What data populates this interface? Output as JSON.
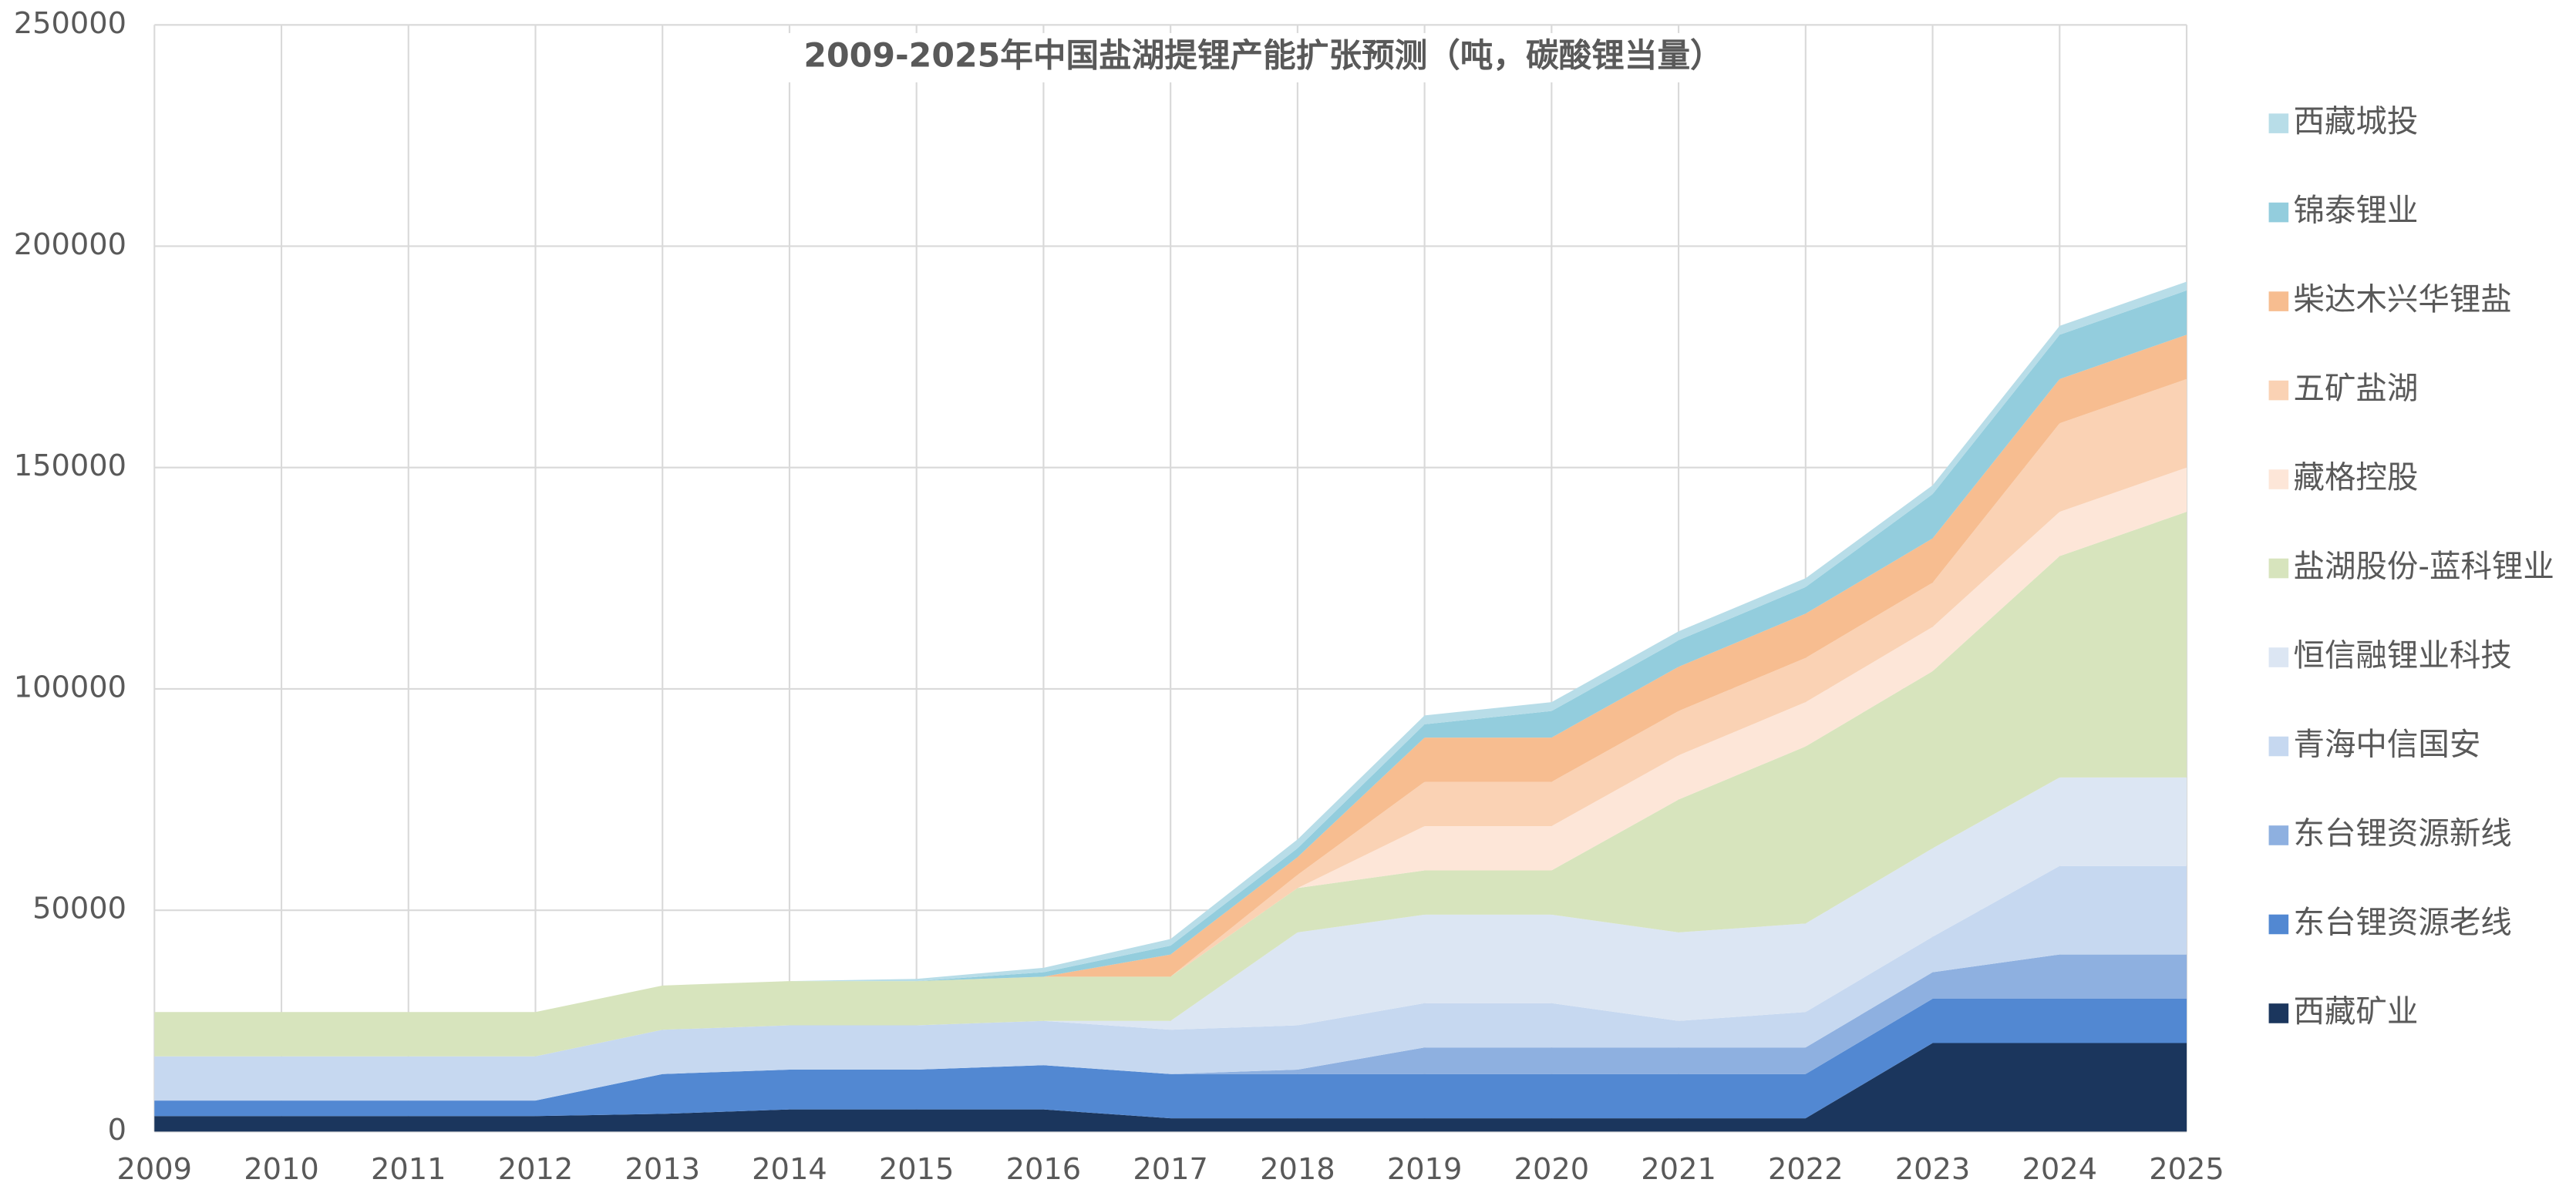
{
  "chart_data": {
    "type": "stacked_area",
    "title": "2009-2025年中国盐湖提锂产能扩张预测（吨，碳酸锂当量）",
    "x": [
      2009,
      2010,
      2011,
      2012,
      2013,
      2014,
      2015,
      2016,
      2017,
      2018,
      2019,
      2020,
      2021,
      2022,
      2023,
      2024,
      2025
    ],
    "xlim": [
      2009,
      2025
    ],
    "xticks": [
      2009,
      2010,
      2011,
      2012,
      2013,
      2014,
      2015,
      2016,
      2017,
      2018,
      2019,
      2020,
      2021,
      2022,
      2023,
      2024,
      2025
    ],
    "ylim": [
      0,
      250000
    ],
    "yticks": [
      0,
      50000,
      100000,
      150000,
      200000,
      250000
    ],
    "grid": true,
    "legend": "right",
    "series": [
      {
        "name": "西藏矿业",
        "color": "#1b365d",
        "values": [
          3500,
          3500,
          3500,
          3500,
          4000,
          5000,
          5000,
          5000,
          3000,
          3000,
          3000,
          3000,
          3000,
          3000,
          20000,
          20000,
          20000
        ]
      },
      {
        "name": "东台锂资源老线",
        "color": "#5288d2",
        "values": [
          3500,
          3500,
          3500,
          3500,
          9000,
          9000,
          9000,
          10000,
          10000,
          10000,
          10000,
          10000,
          10000,
          10000,
          10000,
          10000,
          10000
        ]
      },
      {
        "name": "东台锂资源新线",
        "color": "#8eb0e0",
        "values": [
          0,
          0,
          0,
          0,
          0,
          0,
          0,
          0,
          0,
          1000,
          6000,
          6000,
          6000,
          6000,
          6000,
          10000,
          10000
        ]
      },
      {
        "name": "青海中信国安",
        "color": "#c6d8f0",
        "values": [
          10000,
          10000,
          10000,
          10000,
          10000,
          10000,
          10000,
          10000,
          10000,
          10000,
          10000,
          10000,
          6000,
          8000,
          8000,
          20000,
          20000
        ]
      },
      {
        "name": "恒信融锂业科技",
        "color": "#dce6f3",
        "values": [
          0,
          0,
          0,
          0,
          0,
          0,
          0,
          0,
          2000,
          21000,
          20000,
          20000,
          20000,
          20000,
          20000,
          20000,
          20000
        ]
      },
      {
        "name": "盐湖股份-蓝科锂业",
        "color": "#d7e4bd",
        "values": [
          10000,
          10000,
          10000,
          10000,
          10000,
          10000,
          10000,
          10000,
          10000,
          10000,
          10000,
          10000,
          30000,
          40000,
          40000,
          50000,
          60000
        ]
      },
      {
        "name": "藏格控股",
        "color": "#fde6d8",
        "values": [
          0,
          0,
          0,
          0,
          0,
          0,
          0,
          0,
          0,
          0,
          10000,
          10000,
          10000,
          10000,
          10000,
          10000,
          10000
        ]
      },
      {
        "name": "五矿盐湖",
        "color": "#fad2b4",
        "values": [
          0,
          0,
          0,
          0,
          0,
          0,
          0,
          0,
          0,
          3000,
          10000,
          10000,
          10000,
          10000,
          10000,
          20000,
          20000
        ]
      },
      {
        "name": "柴达木兴华锂盐",
        "color": "#f7bd90",
        "values": [
          0,
          0,
          0,
          0,
          0,
          0,
          0,
          0,
          5000,
          4000,
          10000,
          10000,
          10000,
          10000,
          10000,
          10000,
          10000
        ]
      },
      {
        "name": "锦泰锂业",
        "color": "#93cddd",
        "values": [
          0,
          0,
          0,
          0,
          0,
          0,
          0,
          1000,
          2000,
          2000,
          3000,
          6000,
          6000,
          6000,
          10000,
          10000,
          10000
        ]
      },
      {
        "name": "西藏城投",
        "color": "#b8dde8",
        "values": [
          0,
          0,
          0,
          0,
          0,
          0,
          500,
          1000,
          1500,
          2000,
          2000,
          2000,
          2000,
          2000,
          2000,
          2000,
          2000
        ]
      }
    ]
  }
}
